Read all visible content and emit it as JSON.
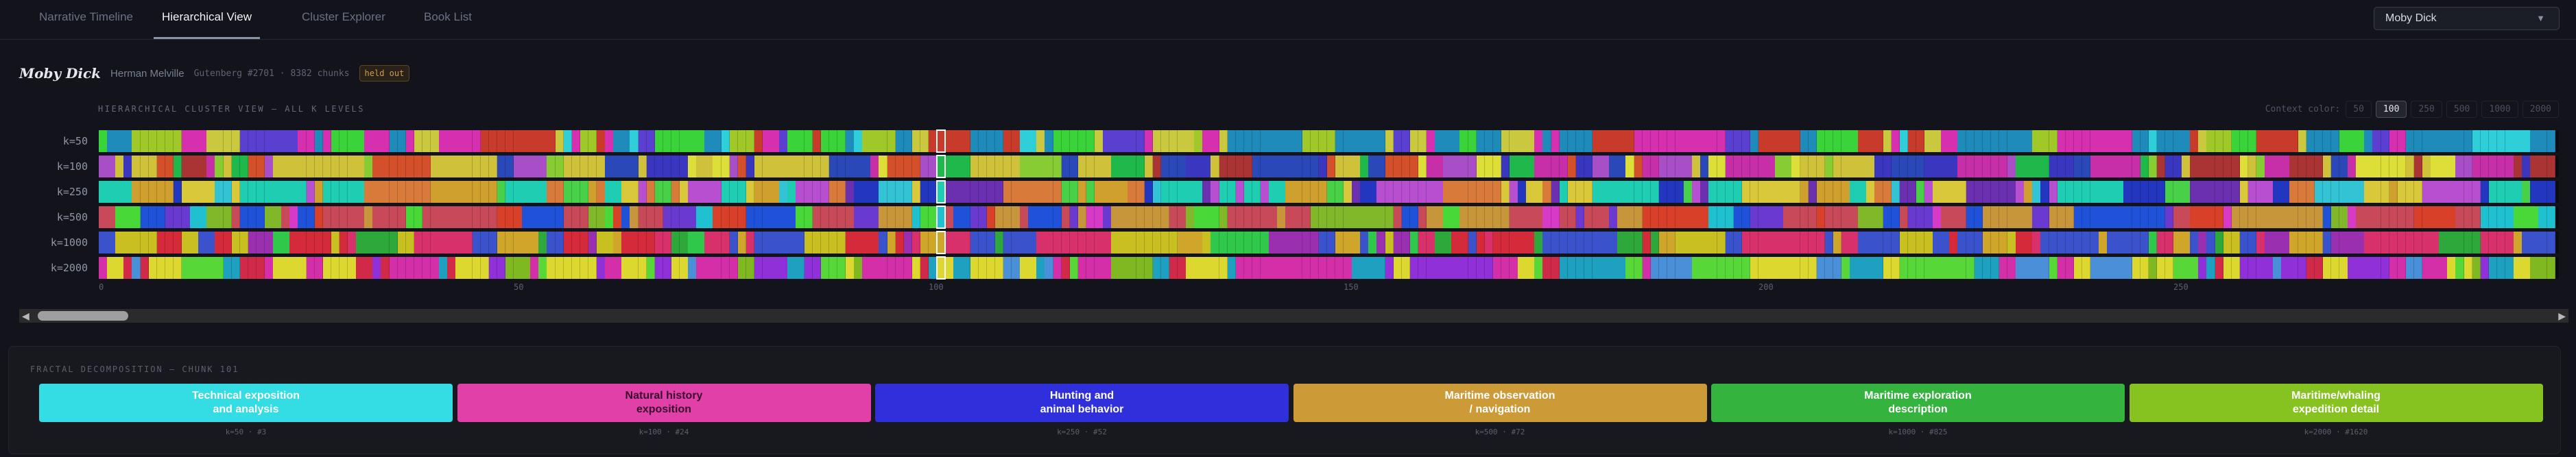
{
  "tabs": [
    {
      "label": "Narrative Timeline"
    },
    {
      "label": "Hierarchical View",
      "active": true
    },
    {
      "label": "Cluster Explorer"
    },
    {
      "label": "Book List"
    }
  ],
  "book_select": {
    "value": "Moby Dick",
    "icon": "triangle-down-icon"
  },
  "book": {
    "title": "Moby Dick",
    "author": "Herman Melville",
    "meta": "Gutenberg #2701 · 8382 chunks",
    "badge": "held out"
  },
  "cluster_view": {
    "title": "HIERARCHICAL CLUSTER VIEW — ALL K LEVELS",
    "context_label": "Context color:",
    "context_options": [
      "50",
      "100",
      "250",
      "500",
      "1000",
      "2000"
    ],
    "context_selected": "100",
    "rows": [
      {
        "label": "k=50",
        "palette": [
          "#1f8bba",
          "#1f8bba",
          "#1f8bba",
          "#d62fb0",
          "#d62fb0",
          "#5a3fd0",
          "#2ecfd8",
          "#c9c83e",
          "#a0c828",
          "#c83a2a",
          "#3ad43a"
        ]
      },
      {
        "label": "k=100",
        "palette": [
          "#cfc23a",
          "#dede38",
          "#cfc23a",
          "#3a36c0",
          "#a33",
          "#a84fc8",
          "#2b48b8",
          "#88cc33",
          "#1fb84a",
          "#d4502a",
          "#c62fa8"
        ]
      },
      {
        "label": "k=250",
        "palette": [
          "#1ecdb2",
          "#32c4d4",
          "#1ecdb2",
          "#d0a02e",
          "#6a30b0",
          "#d8c83a",
          "#d87a3a",
          "#2236c0",
          "#48d048",
          "#b84fd0"
        ]
      },
      {
        "label": "k=500",
        "palette": [
          "#c84a58",
          "#c8963a",
          "#c84a58",
          "#1f52d8",
          "#48d838",
          "#d83ac8",
          "#6a3ad0",
          "#d8402a",
          "#80b82a",
          "#1fc0d0"
        ]
      },
      {
        "label": "k=1000",
        "palette": [
          "#3a52cc",
          "#3a52cc",
          "#d0a62a",
          "#2ea83a",
          "#d42a3a",
          "#c8c020",
          "#9a30b0",
          "#d8306a",
          "#2fc84a"
        ]
      },
      {
        "label": "k=2000",
        "palette": [
          "#dcd830",
          "#dcd830",
          "#7fb820",
          "#4a90d8",
          "#9030d8",
          "#d42fa8",
          "#d02a48",
          "#1ea0c0",
          "#58d838"
        ]
      }
    ],
    "highlight_chunk": 101,
    "visible_chunks": 296,
    "ticks": [
      "0",
      "50",
      "100",
      "150",
      "200",
      "250"
    ]
  },
  "fractal": {
    "title": "FRACTAL DECOMPOSITION — CHUNK 101",
    "cards": [
      {
        "label": "Technical exposition\nand analysis",
        "sub": "k=50 · #3",
        "color": "#33dde3",
        "text": "#ffffff"
      },
      {
        "label": "Natural history\nexposition",
        "sub": "k=100 · #24",
        "color": "#e040a8",
        "text": "#3a0c2c"
      },
      {
        "label": "Hunting and\nanimal behavior",
        "sub": "k=250 · #52",
        "color": "#2f2fdc",
        "text": "#ffffff"
      },
      {
        "label": "Maritime observation\n/ navigation",
        "sub": "k=500 · #72",
        "color": "#cc9b38",
        "text": "#ffffff"
      },
      {
        "label": "Maritime exploration\ndescription",
        "sub": "k=1000 · #825",
        "color": "#34b33e",
        "text": "#ffffff"
      },
      {
        "label": "Maritime/whaling\nexpedition detail",
        "sub": "k=2000 · #1620",
        "color": "#86c220",
        "text": "#ffffff"
      }
    ]
  }
}
